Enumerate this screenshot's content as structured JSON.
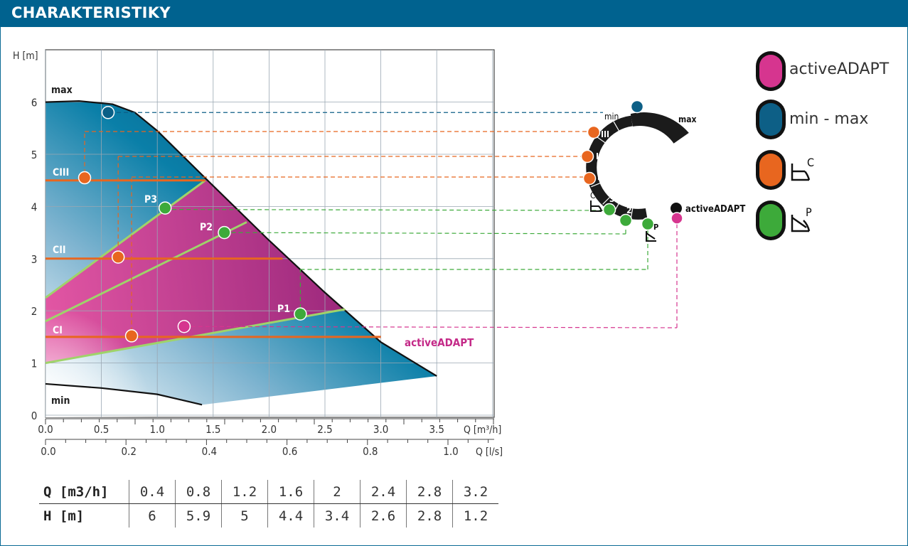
{
  "header": {
    "title": "CHARAKTERISTIKY"
  },
  "chart_data": {
    "type": "line",
    "ylabel": "H [m]",
    "xlabel_m3h": "Q [m³/h]",
    "xlabel_ls": "Q [l/s]",
    "ylim": [
      0,
      6.5
    ],
    "xlim": [
      0,
      4.0
    ],
    "y_ticks": [
      "0",
      "1",
      "2",
      "3",
      "4",
      "5",
      "6"
    ],
    "x_ticks_m3h": [
      "0.0",
      "0.5",
      "1.0",
      "1.5",
      "2.0",
      "2.5",
      "3.0",
      "3.5"
    ],
    "x_ticks_ls": [
      "0.0",
      "0.2",
      "0.4",
      "0.6",
      "0.8",
      "1.0"
    ],
    "curve_labels": {
      "max": "max",
      "min": "min",
      "c3": "CIII",
      "c2": "CII",
      "c1": "CI",
      "p3": "P3",
      "p2": "P2",
      "p1": "P1",
      "adapt": "activeADAPT"
    },
    "max_curve": [
      [
        0,
        6
      ],
      [
        0.3,
        6.02
      ],
      [
        0.6,
        5.96
      ],
      [
        0.8,
        5.8
      ],
      [
        1.0,
        5.45
      ],
      [
        1.45,
        4.5
      ],
      [
        2.0,
        3.35
      ],
      [
        2.5,
        2.35
      ],
      [
        3.0,
        1.4
      ],
      [
        3.5,
        0.75
      ]
    ],
    "min_curve": [
      [
        0,
        0.6
      ],
      [
        0.5,
        0.52
      ],
      [
        1.0,
        0.4
      ],
      [
        1.4,
        0.2
      ]
    ],
    "constant_pressure": [
      {
        "name": "CIII",
        "H": 4.5,
        "x_end": 1.43
      },
      {
        "name": "CII",
        "H": 3.0,
        "x_end": 2.12
      },
      {
        "name": "CI",
        "H": 1.5,
        "x_end": 3.0
      }
    ],
    "proportional_pressure": [
      {
        "name": "P3",
        "x": [
          0,
          1.43
        ],
        "H": [
          2.25,
          4.5
        ]
      },
      {
        "name": "P2",
        "x": [
          0,
          1.8
        ],
        "H": [
          1.8,
          3.7
        ]
      },
      {
        "name": "P1",
        "x": [
          0,
          2.68
        ],
        "H": [
          1.0,
          2.03
        ]
      }
    ],
    "markers": [
      {
        "series": "max",
        "x": 0.56,
        "H": 5.8,
        "color": "#0d5f86"
      },
      {
        "series": "CIII",
        "x": 0.35,
        "H": 4.55,
        "color": "#e8661f"
      },
      {
        "series": "CII",
        "x": 0.65,
        "H": 3.03,
        "color": "#e8661f"
      },
      {
        "series": "CI",
        "x": 0.77,
        "H": 1.52,
        "color": "#e8661f"
      },
      {
        "series": "P3",
        "x": 1.07,
        "H": 3.97,
        "color": "#3daa3a"
      },
      {
        "series": "P2",
        "x": 1.6,
        "H": 3.5,
        "color": "#3daa3a"
      },
      {
        "series": "P1",
        "x": 2.28,
        "H": 1.94,
        "color": "#3daa3a"
      },
      {
        "series": "activeADAPT",
        "x": 1.24,
        "H": 1.7,
        "color": "#d6358f"
      }
    ],
    "colors": {
      "blue": "#00628f",
      "magenta": "#c42a88",
      "orange": "#e8661f",
      "green": "#3daa3a",
      "light_green": "#9fd36a"
    },
    "grid": true
  },
  "dial": {
    "min_label": "min",
    "max_label": "max",
    "romans": [
      "III",
      "II",
      "I"
    ],
    "c_label": "C",
    "p_label": "P",
    "numbers": [
      "3",
      "2",
      "1"
    ],
    "adapt_label": "activeADAPT"
  },
  "legend": {
    "items": [
      {
        "label": "activeADAPT",
        "color": "#d6358f"
      },
      {
        "label": "min - max",
        "color": "#0d5f86"
      },
      {
        "label": "",
        "color": "#e8661f",
        "symbol": "C"
      },
      {
        "label": "",
        "color": "#3daa3a",
        "symbol": "P"
      }
    ]
  },
  "table": {
    "q_label": "Q [m3/h]",
    "h_label": "H [m]",
    "q_values": [
      "0.4",
      "0.8",
      "1.2",
      "1.6",
      "2",
      "2.4",
      "2.8",
      "3.2"
    ],
    "h_values": [
      "6",
      "5.9",
      "5",
      "4.4",
      "3.4",
      "2.6",
      "2.8",
      "1.2"
    ]
  }
}
